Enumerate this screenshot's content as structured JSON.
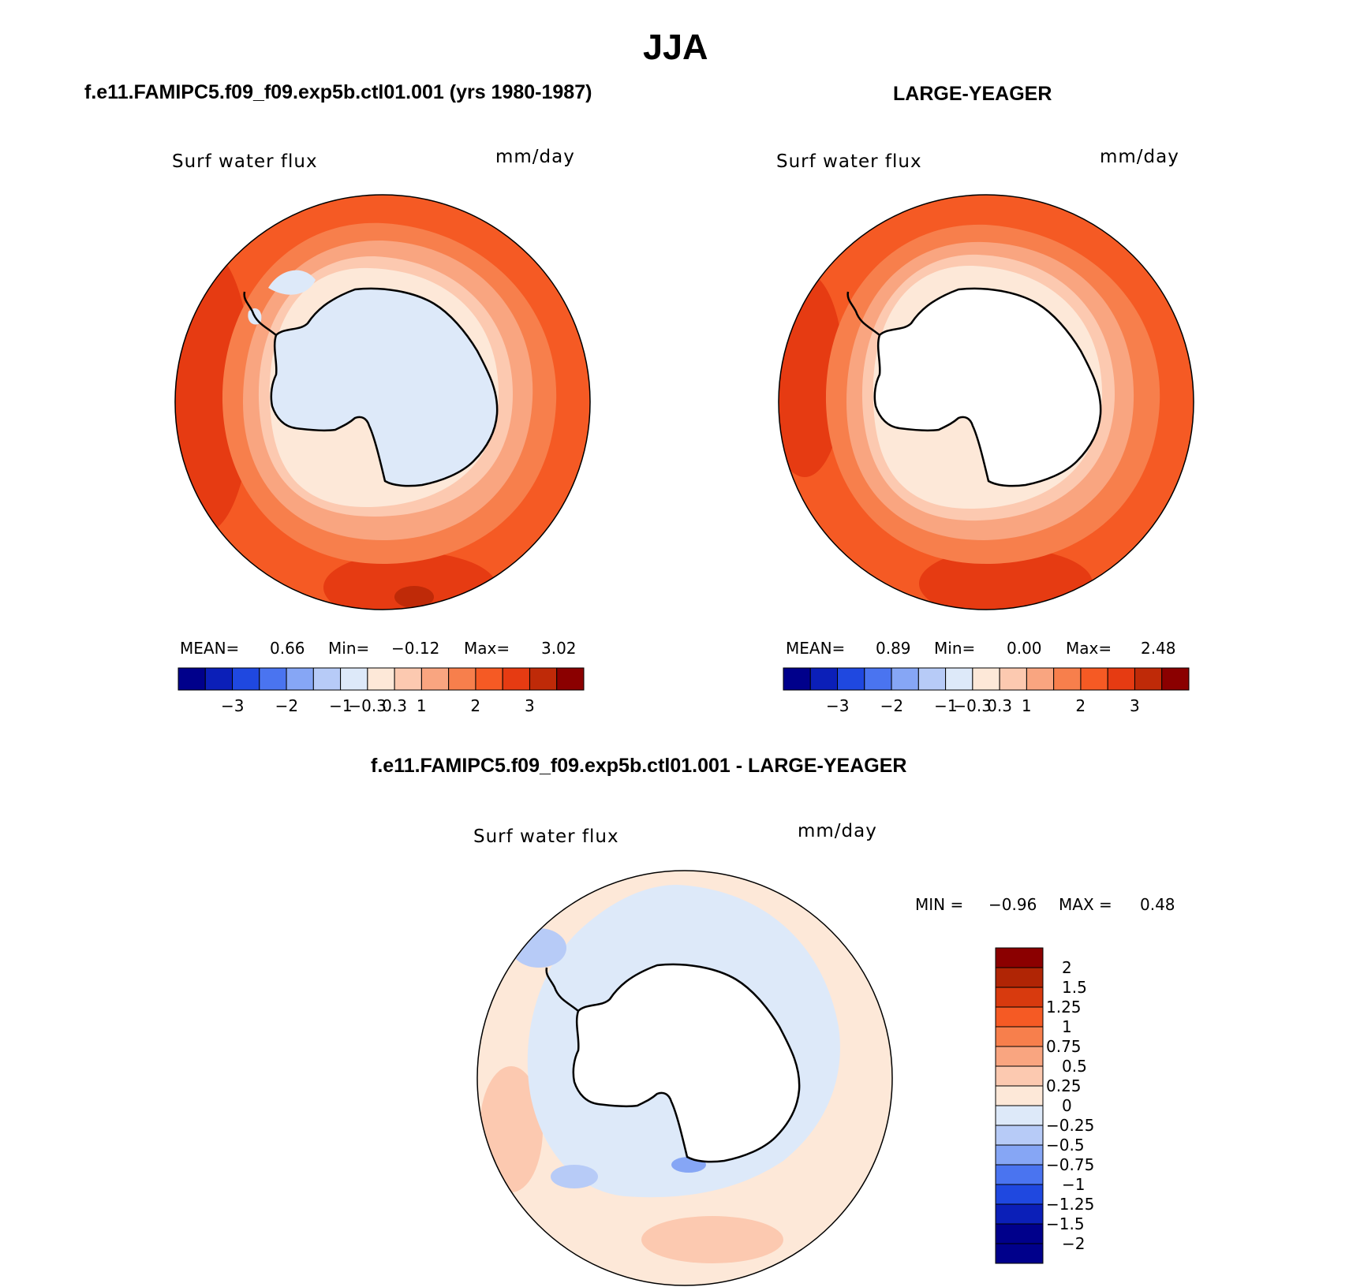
{
  "main_title": "JJA",
  "panels": [
    {
      "case_title": "f.e11.FAMIPC5.f09_f09.exp5b.ctl01.001 (yrs 1980-1987)",
      "variable": "Surf water flux",
      "units": "mm/day",
      "stats": {
        "mean_label": "MEAN=",
        "mean": "0.66",
        "min_label": "Min=",
        "min": "−0.12",
        "max_label": "Max=",
        "max": "3.02"
      },
      "ticks": [
        "−3",
        "−2",
        "−1",
        "−0.3",
        "0.3",
        "1",
        "2",
        "3"
      ]
    },
    {
      "case_title": "LARGE-YEAGER",
      "variable": "Surf water flux",
      "units": "mm/day",
      "stats": {
        "mean_label": "MEAN=",
        "mean": "0.89",
        "min_label": "Min=",
        "min": "0.00",
        "max_label": "Max=",
        "max": "2.48"
      },
      "ticks": [
        "−3",
        "−2",
        "−1",
        "−0.3",
        "0.3",
        "1",
        "2",
        "3"
      ]
    }
  ],
  "diff_panel": {
    "case_title": "f.e11.FAMIPC5.f09_f09.exp5b.ctl01.001 - LARGE-YEAGER",
    "variable": "Surf water flux",
    "units": "mm/day",
    "min_label": "MIN =",
    "min": "−0.96",
    "max_label": "MAX =",
    "max": "0.48",
    "levels": [
      "2",
      "1.5",
      "1.25",
      "1",
      "0.75",
      "0.5",
      "0.25",
      "0",
      "−0.25",
      "−0.5",
      "−0.75",
      "−1",
      "−1.25",
      "−1.5",
      "−2"
    ]
  },
  "colors": {
    "abs_scale": [
      "#00008b",
      "#0b1fb8",
      "#1f48e0",
      "#4a74f0",
      "#86a6f5",
      "#b7cbf7",
      "#dde9f9",
      "#fde8d8",
      "#fcc9b0",
      "#f9a580",
      "#f77f4c",
      "#f55a24",
      "#e63b12",
      "#bf2a08",
      "#8b0000"
    ],
    "diff_scale": [
      "#8b0000",
      "#b02505",
      "#d83a0e",
      "#f55a24",
      "#f77f4c",
      "#f9a580",
      "#fcc9b0",
      "#fde8d8",
      "#dde9f9",
      "#b7cbf7",
      "#86a6f5",
      "#4a74f0",
      "#1f48e0",
      "#0b1fb8",
      "#00008b"
    ]
  },
  "chart_data": [
    {
      "type": "heatmap",
      "title": "Surf water flux",
      "units": "mm/day",
      "projection": "south polar stereographic",
      "colorbar_ticks": [
        -3,
        -2,
        -1,
        -0.3,
        0.3,
        1,
        2,
        3
      ],
      "mean": 0.66,
      "min": -0.12,
      "max": 3.02
    },
    {
      "type": "heatmap",
      "title": "Surf water flux",
      "units": "mm/day",
      "projection": "south polar stereographic",
      "colorbar_ticks": [
        -3,
        -2,
        -1,
        -0.3,
        0.3,
        1,
        2,
        3
      ],
      "mean": 0.89,
      "min": 0.0,
      "max": 2.48
    },
    {
      "type": "heatmap",
      "title": "Surf water flux",
      "units": "mm/day",
      "projection": "south polar stereographic",
      "colorbar_levels": [
        2,
        1.5,
        1.25,
        1,
        0.75,
        0.5,
        0.25,
        0,
        -0.25,
        -0.5,
        -0.75,
        -1,
        -1.25,
        -1.5,
        -2
      ],
      "min": -0.96,
      "max": 0.48
    }
  ]
}
